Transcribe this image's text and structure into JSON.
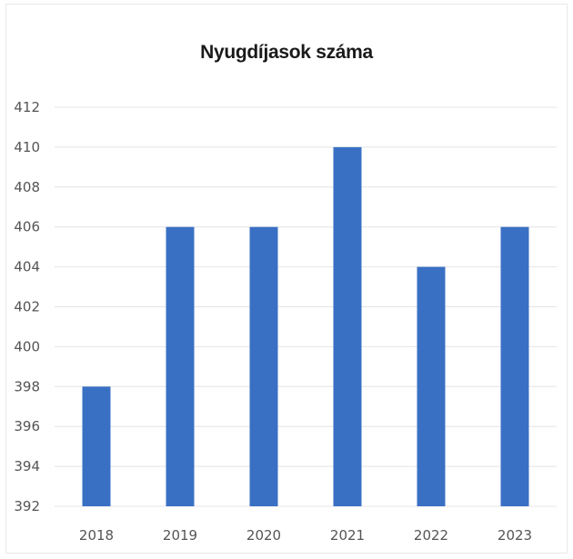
{
  "chart_data": {
    "type": "bar",
    "title": "Nyugdíjasok száma",
    "categories": [
      "2018",
      "2019",
      "2020",
      "2021",
      "2022",
      "2023"
    ],
    "values": [
      398,
      406,
      406,
      410,
      404,
      406
    ],
    "ylim": [
      392,
      412
    ],
    "yticks": [
      "392",
      "394",
      "396",
      "398",
      "400",
      "402",
      "404",
      "406",
      "408",
      "410",
      "412"
    ],
    "xlabel": "",
    "ylabel": "",
    "grid": true,
    "legend": "none",
    "bar_color": "#3a70c4"
  }
}
